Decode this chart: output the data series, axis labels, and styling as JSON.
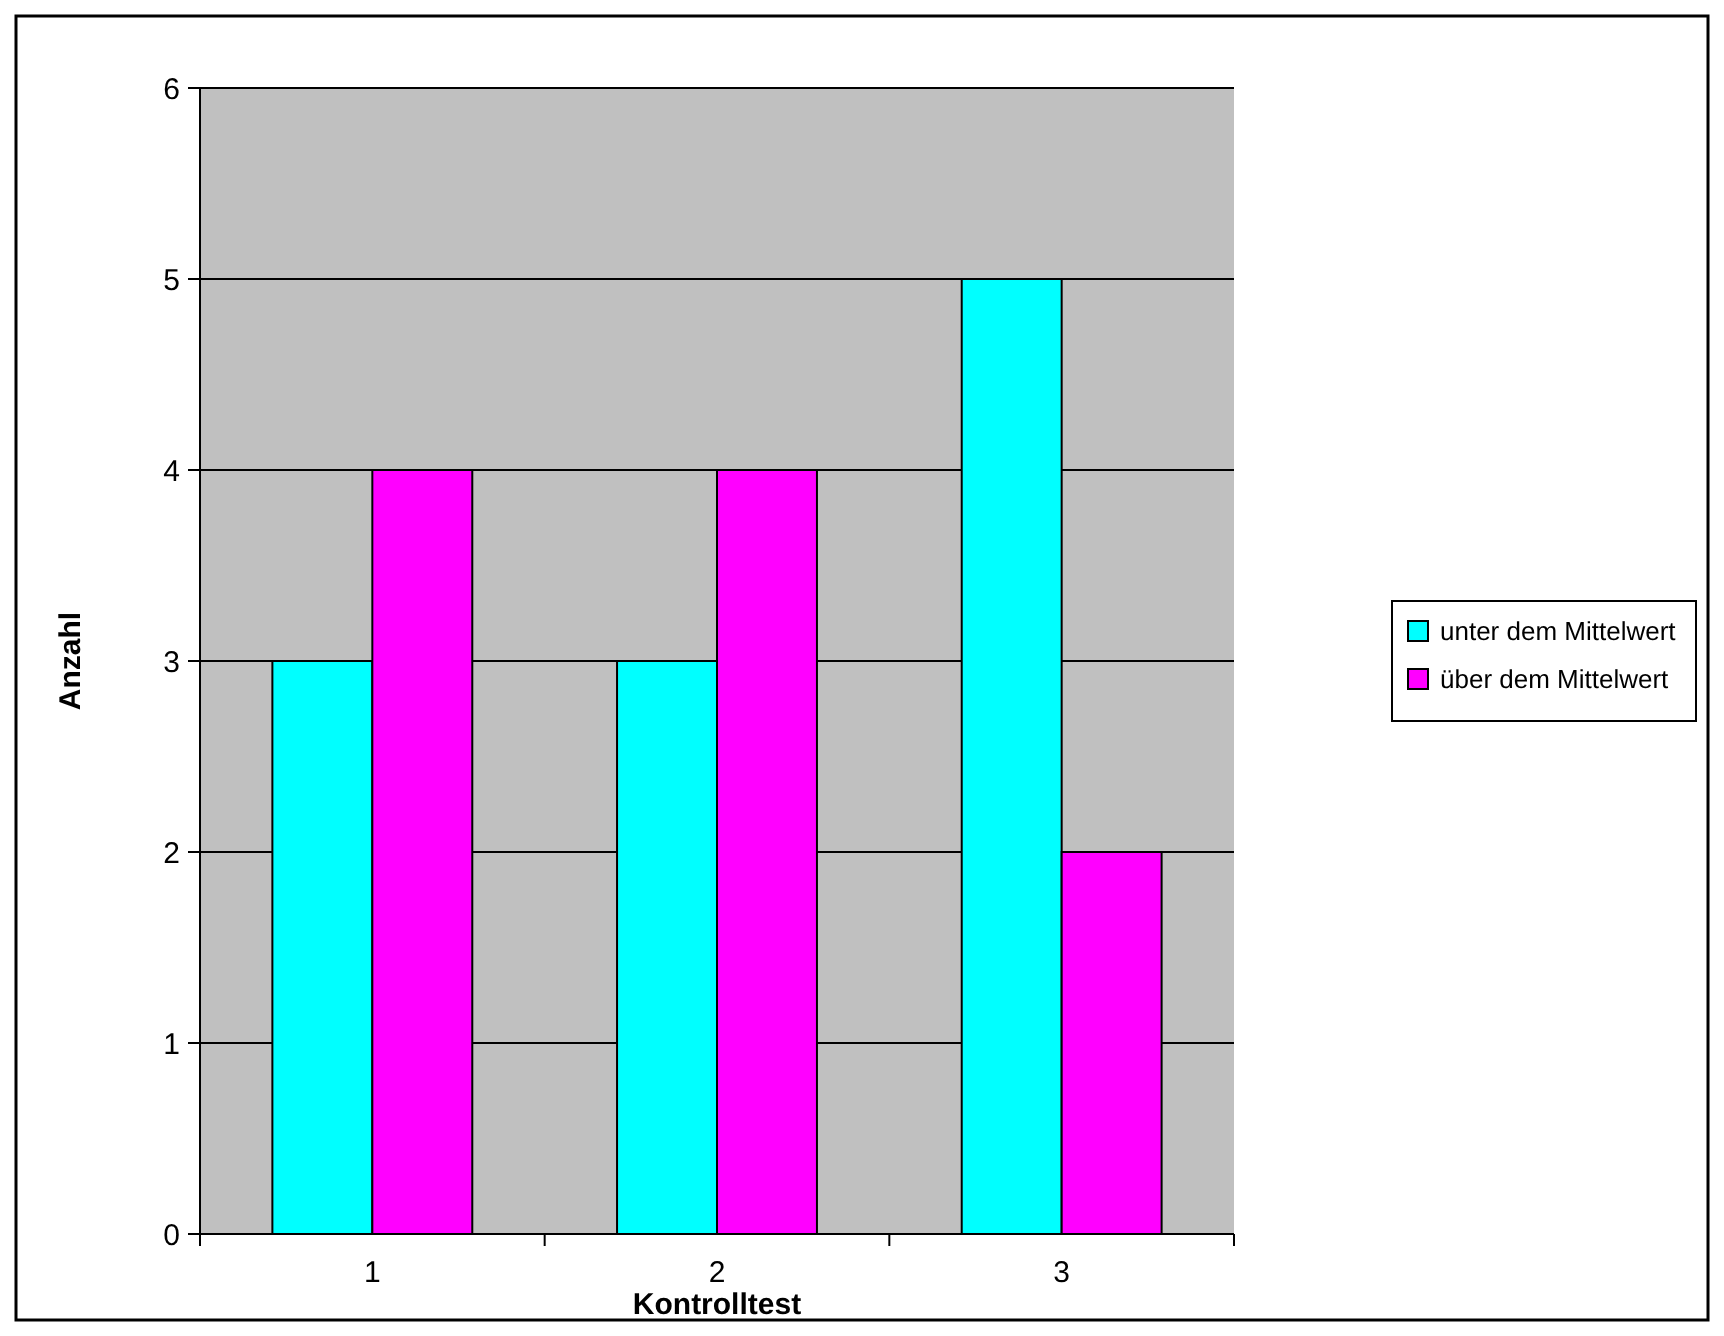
{
  "chart_data": {
    "type": "bar",
    "xlabel": "Kontrolltest",
    "ylabel": "Anzahl",
    "categories": [
      "1",
      "2",
      "3"
    ],
    "series": [
      {
        "name": "unter dem Mittelwert",
        "color": "#00ffff",
        "values": [
          3,
          3,
          5
        ]
      },
      {
        "name": "über dem Mittelwert",
        "color": "#ff00ff",
        "values": [
          4,
          4,
          2
        ]
      }
    ],
    "ylim": [
      0,
      6
    ],
    "yticks": [
      0,
      1,
      2,
      3,
      4,
      5,
      6
    ],
    "grid": "y",
    "legend": "right"
  }
}
